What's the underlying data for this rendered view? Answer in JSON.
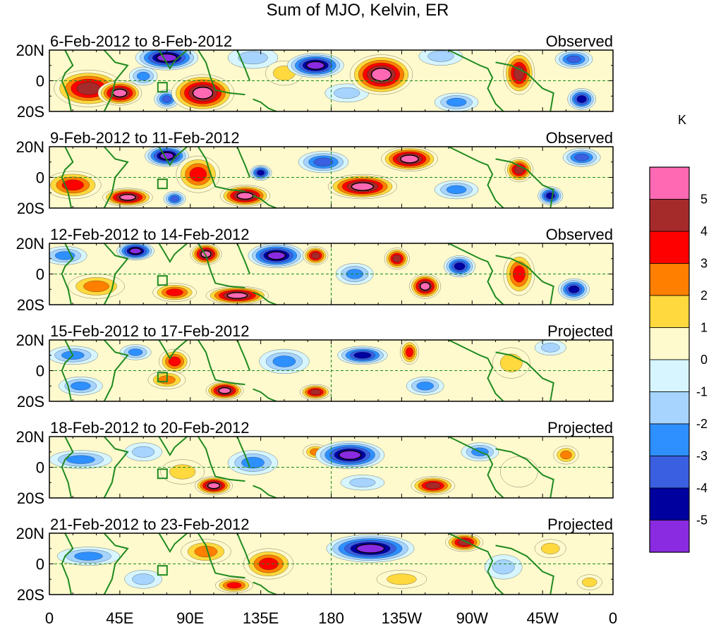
{
  "chart_data": {
    "type": "heatmap",
    "title": "Sum of MJO, Kelvin, ER",
    "units_label": "K",
    "x_ticks": [
      "0",
      "45E",
      "90E",
      "135E",
      "180",
      "135W",
      "90W",
      "45W",
      "0"
    ],
    "y_ticks": [
      "20N",
      "0",
      "20S"
    ],
    "xlim_deg_east": [
      0,
      360
    ],
    "ylim_deg": [
      -20,
      20
    ],
    "colorbar": {
      "labels": [
        "5",
        "4",
        "3",
        "2",
        "1",
        "0",
        "-1",
        "-2",
        "-3",
        "-4",
        "-5"
      ],
      "colors": [
        "#FF69B4",
        "#A52A2A",
        "#FF0000",
        "#FF7F00",
        "#FFD93D",
        "#FFFACD",
        "#D6F5FF",
        "#A6D4FF",
        "#2E8FFF",
        "#3A5FE0",
        "#00009E",
        "#8A2BE2"
      ]
    },
    "panels": [
      {
        "date_label": "6-Feb-2012 to 8-Feb-2012",
        "status": "Observed",
        "features": [
          {
            "lon": 25,
            "lat": -5,
            "value": 4.2,
            "rx": 22,
            "ry": 12
          },
          {
            "lon": 45,
            "lat": -8,
            "value": 5.2,
            "rx": 14,
            "ry": 8
          },
          {
            "lon": 60,
            "lat": 3,
            "value": -2.5,
            "rx": 9,
            "ry": 6
          },
          {
            "lon": 75,
            "lat": -12,
            "value": -3.5,
            "rx": 8,
            "ry": 6
          },
          {
            "lon": 75,
            "lat": 15,
            "value": -5.2,
            "rx": 20,
            "ry": 8
          },
          {
            "lon": 98,
            "lat": -8,
            "value": 5.3,
            "rx": 20,
            "ry": 12
          },
          {
            "lon": 130,
            "lat": 15,
            "value": -1.8,
            "rx": 16,
            "ry": 7
          },
          {
            "lon": 150,
            "lat": 5,
            "value": 1.6,
            "rx": 12,
            "ry": 8
          },
          {
            "lon": 170,
            "lat": 10,
            "value": -5.3,
            "rx": 18,
            "ry": 8
          },
          {
            "lon": 190,
            "lat": -8,
            "value": -1.6,
            "rx": 14,
            "ry": 6
          },
          {
            "lon": 212,
            "lat": 4,
            "value": 5.4,
            "rx": 20,
            "ry": 13
          },
          {
            "lon": 260,
            "lat": -14,
            "value": -2.2,
            "rx": 14,
            "ry": 6
          },
          {
            "lon": 250,
            "lat": 16,
            "value": -1.8,
            "rx": 14,
            "ry": 6
          },
          {
            "lon": 300,
            "lat": 5,
            "value": 4.3,
            "rx": 10,
            "ry": 14
          },
          {
            "lon": 335,
            "lat": 14,
            "value": -4.0,
            "rx": 12,
            "ry": 6
          },
          {
            "lon": 340,
            "lat": -12,
            "value": -4.2,
            "rx": 9,
            "ry": 7
          }
        ]
      },
      {
        "date_label": "9-Feb-2012 to 11-Feb-2012",
        "status": "Observed",
        "features": [
          {
            "lon": 15,
            "lat": -5,
            "value": 3.6,
            "rx": 18,
            "ry": 9
          },
          {
            "lon": 50,
            "lat": -13,
            "value": 5.1,
            "rx": 16,
            "ry": 6
          },
          {
            "lon": 75,
            "lat": 14,
            "value": -5.2,
            "rx": 14,
            "ry": 7
          },
          {
            "lon": 80,
            "lat": -14,
            "value": -4.0,
            "rx": 7,
            "ry": 5
          },
          {
            "lon": 95,
            "lat": 2,
            "value": 3.8,
            "rx": 14,
            "ry": 12
          },
          {
            "lon": 125,
            "lat": -12,
            "value": 5.2,
            "rx": 16,
            "ry": 7
          },
          {
            "lon": 135,
            "lat": 3,
            "value": -4.1,
            "rx": 7,
            "ry": 5
          },
          {
            "lon": 175,
            "lat": 10,
            "value": -3.2,
            "rx": 16,
            "ry": 7
          },
          {
            "lon": 200,
            "lat": -6,
            "value": 5.2,
            "rx": 22,
            "ry": 8
          },
          {
            "lon": 230,
            "lat": 12,
            "value": 5.1,
            "rx": 18,
            "ry": 8
          },
          {
            "lon": 260,
            "lat": -8,
            "value": -2.4,
            "rx": 14,
            "ry": 6
          },
          {
            "lon": 300,
            "lat": 5,
            "value": 5.0,
            "rx": 9,
            "ry": 8
          },
          {
            "lon": 320,
            "lat": -12,
            "value": -4.1,
            "rx": 8,
            "ry": 6
          },
          {
            "lon": 340,
            "lat": 13,
            "value": -4.0,
            "rx": 12,
            "ry": 6
          }
        ]
      },
      {
        "date_label": "12-Feb-2012 to 14-Feb-2012",
        "status": "Observed",
        "features": [
          {
            "lon": 10,
            "lat": 12,
            "value": -2.3,
            "rx": 14,
            "ry": 6
          },
          {
            "lon": 30,
            "lat": -8,
            "value": 2.4,
            "rx": 18,
            "ry": 8
          },
          {
            "lon": 55,
            "lat": 15,
            "value": -5.1,
            "rx": 12,
            "ry": 6
          },
          {
            "lon": 80,
            "lat": -12,
            "value": 3.3,
            "rx": 14,
            "ry": 6
          },
          {
            "lon": 100,
            "lat": 13,
            "value": 5.1,
            "rx": 10,
            "ry": 7
          },
          {
            "lon": 120,
            "lat": -14,
            "value": 5.3,
            "rx": 20,
            "ry": 6
          },
          {
            "lon": 145,
            "lat": 12,
            "value": -5.3,
            "rx": 18,
            "ry": 8
          },
          {
            "lon": 170,
            "lat": 12,
            "value": 4.2,
            "rx": 8,
            "ry": 6
          },
          {
            "lon": 195,
            "lat": 0,
            "value": -2.2,
            "rx": 12,
            "ry": 7
          },
          {
            "lon": 222,
            "lat": 10,
            "value": 5.0,
            "rx": 8,
            "ry": 7
          },
          {
            "lon": 240,
            "lat": -8,
            "value": 5.1,
            "rx": 10,
            "ry": 8
          },
          {
            "lon": 262,
            "lat": 5,
            "value": -4.3,
            "rx": 10,
            "ry": 7
          },
          {
            "lon": 300,
            "lat": 0,
            "value": 3.5,
            "rx": 10,
            "ry": 14
          },
          {
            "lon": 335,
            "lat": -10,
            "value": -4.2,
            "rx": 10,
            "ry": 7
          }
        ]
      },
      {
        "date_label": "15-Feb-2012 to 17-Feb-2012",
        "status": "Projected",
        "features": [
          {
            "lon": 15,
            "lat": 10,
            "value": -2.3,
            "rx": 16,
            "ry": 6
          },
          {
            "lon": 20,
            "lat": -10,
            "value": -2.1,
            "rx": 14,
            "ry": 6
          },
          {
            "lon": 55,
            "lat": 12,
            "value": -2.2,
            "rx": 10,
            "ry": 5
          },
          {
            "lon": 80,
            "lat": 6,
            "value": 3.2,
            "rx": 10,
            "ry": 8
          },
          {
            "lon": 75,
            "lat": -6,
            "value": 2.1,
            "rx": 12,
            "ry": 6
          },
          {
            "lon": 112,
            "lat": -13,
            "value": 5.1,
            "rx": 12,
            "ry": 6
          },
          {
            "lon": 150,
            "lat": 6,
            "value": -2.8,
            "rx": 16,
            "ry": 8
          },
          {
            "lon": 170,
            "lat": -14,
            "value": 4.2,
            "rx": 10,
            "ry": 5
          },
          {
            "lon": 200,
            "lat": 10,
            "value": -4.2,
            "rx": 16,
            "ry": 6
          },
          {
            "lon": 230,
            "lat": 12,
            "value": 3.6,
            "rx": 6,
            "ry": 8
          },
          {
            "lon": 240,
            "lat": -10,
            "value": -2.5,
            "rx": 12,
            "ry": 6
          },
          {
            "lon": 295,
            "lat": 5,
            "value": 1.6,
            "rx": 12,
            "ry": 10
          },
          {
            "lon": 320,
            "lat": 15,
            "value": -2.0,
            "rx": 10,
            "ry": 5
          }
        ]
      },
      {
        "date_label": "18-Feb-2012 to 20-Feb-2012",
        "status": "Projected",
        "features": [
          {
            "lon": 20,
            "lat": 5,
            "value": -2.2,
            "rx": 20,
            "ry": 6
          },
          {
            "lon": 60,
            "lat": 10,
            "value": -2.0,
            "rx": 12,
            "ry": 6
          },
          {
            "lon": 85,
            "lat": -3,
            "value": 2.0,
            "rx": 14,
            "ry": 8
          },
          {
            "lon": 105,
            "lat": -12,
            "value": 5.1,
            "rx": 12,
            "ry": 6
          },
          {
            "lon": 130,
            "lat": 3,
            "value": -2.2,
            "rx": 16,
            "ry": 8
          },
          {
            "lon": 170,
            "lat": 10,
            "value": 2.3,
            "rx": 8,
            "ry": 5
          },
          {
            "lon": 192,
            "lat": 8,
            "value": -5.2,
            "rx": 22,
            "ry": 9
          },
          {
            "lon": 245,
            "lat": -12,
            "value": 4.2,
            "rx": 14,
            "ry": 6
          },
          {
            "lon": 200,
            "lat": -10,
            "value": -1.6,
            "rx": 14,
            "ry": 5
          },
          {
            "lon": 275,
            "lat": 10,
            "value": -2.2,
            "rx": 12,
            "ry": 6
          },
          {
            "lon": 300,
            "lat": -3,
            "value": 0.7,
            "rx": 12,
            "ry": 10
          },
          {
            "lon": 330,
            "lat": 8,
            "value": 2.2,
            "rx": 8,
            "ry": 6
          }
        ]
      },
      {
        "date_label": "21-Feb-2012 to 23-Feb-2012",
        "status": "Projected",
        "features": [
          {
            "lon": 25,
            "lat": 5,
            "value": -2.2,
            "rx": 20,
            "ry": 6
          },
          {
            "lon": 60,
            "lat": -10,
            "value": -2.0,
            "rx": 12,
            "ry": 6
          },
          {
            "lon": 100,
            "lat": 8,
            "value": 2.3,
            "rx": 16,
            "ry": 8
          },
          {
            "lon": 118,
            "lat": -14,
            "value": 3.5,
            "rx": 12,
            "ry": 5
          },
          {
            "lon": 140,
            "lat": 0,
            "value": 3.2,
            "rx": 16,
            "ry": 10
          },
          {
            "lon": 205,
            "lat": 10,
            "value": -5.1,
            "rx": 28,
            "ry": 9
          },
          {
            "lon": 225,
            "lat": -10,
            "value": 1.4,
            "rx": 16,
            "ry": 6
          },
          {
            "lon": 265,
            "lat": 14,
            "value": 4.2,
            "rx": 12,
            "ry": 6
          },
          {
            "lon": 290,
            "lat": -2,
            "value": -1.6,
            "rx": 12,
            "ry": 8
          },
          {
            "lon": 320,
            "lat": 10,
            "value": 2.0,
            "rx": 10,
            "ry": 6
          },
          {
            "lon": 345,
            "lat": -12,
            "value": 1.6,
            "rx": 8,
            "ry": 5
          }
        ]
      }
    ]
  }
}
